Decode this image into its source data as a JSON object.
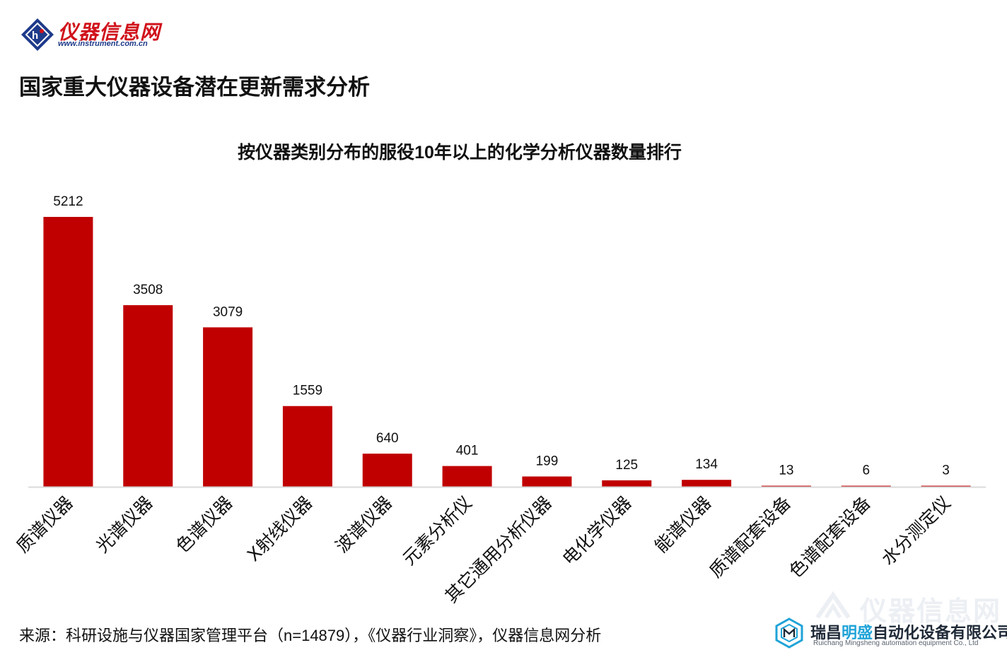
{
  "header": {
    "logo_cn": "仪器信息网",
    "logo_url": "www.instrument.com.cn",
    "page_title": "国家重大仪器设备潜在更新需求分析"
  },
  "footer": {
    "source": "来源：科研设施与仪器国家管理平台（n=14879），《仪器行业洞察》，仪器信息网分析"
  },
  "watermark": {
    "text": "仪器信息网"
  },
  "brand": {
    "name_prefix": "瑞昌",
    "name_highlight": "明盛",
    "name_suffix": "自动化设备有限公司",
    "english": "Ruichang Mingsheng automation equipment Co., Ltd",
    "accent_color": "#1fa3d8"
  },
  "chart_data": {
    "type": "bar",
    "title": "按仪器类别分布的服役10年以上的化学分析仪器数量排行",
    "categories": [
      "质谱仪器",
      "光谱仪器",
      "色谱仪器",
      "X射线仪器",
      "波谱仪器",
      "元素分析仪",
      "其它通用分析仪器",
      "电化学仪器",
      "能谱仪器",
      "质谱配套设备",
      "色谱配套设备",
      "水分测定仪"
    ],
    "values": [
      5212,
      3508,
      3079,
      1559,
      640,
      401,
      199,
      125,
      134,
      13,
      6,
      3
    ],
    "data_labels": [
      "5212",
      "3508",
      "3079",
      "1559",
      "640",
      "401",
      "199",
      "125",
      "134",
      "13",
      "6",
      "3"
    ],
    "bar_color": "#c00000",
    "axis_color": "#d9d9d9",
    "xlabel": "",
    "ylabel": "",
    "ylim": [
      0,
      5212
    ],
    "grid": false,
    "legend": "none"
  }
}
